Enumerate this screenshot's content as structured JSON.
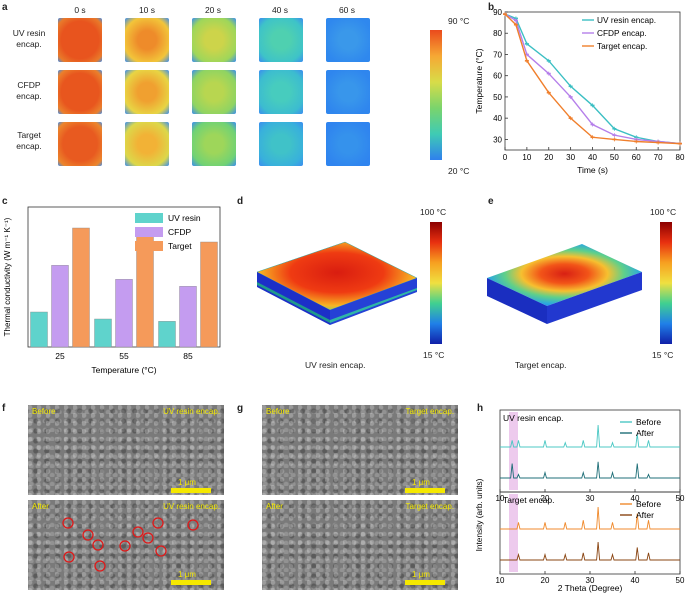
{
  "panels": {
    "a": "a",
    "b": "b",
    "c": "c",
    "d": "d",
    "e": "e",
    "f": "f",
    "g": "g",
    "h": "h"
  },
  "panel_a": {
    "time_labels": [
      "0 s",
      "10 s",
      "20 s",
      "40 s",
      "60 s"
    ],
    "rows": [
      {
        "label1": "UV resin",
        "label2": "encap."
      },
      {
        "label1": "CFDP",
        "label2": "encap."
      },
      {
        "label1": "Target",
        "label2": "encap."
      }
    ],
    "colorbar_max": "90 °C",
    "colorbar_min": "20 °C",
    "colors": [
      "#e94a1c",
      "#f2a42e",
      "#a9d44c",
      "#3fcbb4",
      "#2c85ee"
    ]
  },
  "chart_data": [
    {
      "type": "line",
      "title": "",
      "xlabel": "Time (s)",
      "ylabel": "Temperature (°C)",
      "xlim": [
        0,
        80
      ],
      "ylim": [
        25,
        90
      ],
      "xticks": [
        0,
        10,
        20,
        30,
        40,
        50,
        60,
        70,
        80
      ],
      "yticks": [
        30,
        40,
        50,
        60,
        70,
        80,
        90
      ],
      "series": [
        {
          "name": "UV resin encap.",
          "color": "#3bbfc3",
          "x": [
            0,
            5,
            10,
            20,
            30,
            40,
            50,
            60,
            70,
            80
          ],
          "y": [
            89,
            87,
            75,
            67,
            55,
            46,
            35,
            31,
            29,
            28
          ]
        },
        {
          "name": "CFDP encap.",
          "color": "#b57fea",
          "x": [
            0,
            5,
            10,
            20,
            30,
            40,
            50,
            60,
            70,
            80
          ],
          "y": [
            89,
            86,
            70,
            61,
            50,
            37,
            32,
            30,
            29,
            28
          ]
        },
        {
          "name": "Target encap.",
          "color": "#f07f2c",
          "x": [
            0,
            5,
            10,
            20,
            30,
            40,
            50,
            60,
            70,
            80
          ],
          "y": [
            89,
            84,
            67,
            52,
            40,
            31,
            30,
            29,
            28.5,
            28
          ]
        }
      ]
    },
    {
      "type": "bar",
      "title": "",
      "xlabel": "Temperature (°C)",
      "ylabel": "Thermal conductivity (W m⁻¹ K⁻¹)",
      "ylim": [
        0,
        0.6
      ],
      "categories": [
        "25",
        "55",
        "85"
      ],
      "series": [
        {
          "name": "UV resin",
          "color": "#5fd3cc",
          "values": [
            0.15,
            0.12,
            0.11
          ]
        },
        {
          "name": "CFDP",
          "color": "#c49cf0",
          "values": [
            0.35,
            0.29,
            0.26
          ]
        },
        {
          "name": "Target",
          "color": "#f59a5a",
          "values": [
            0.51,
            0.49,
            0.45
          ]
        }
      ]
    },
    {
      "type": "line",
      "title": "",
      "xlabel": "2 Theta (Degree)",
      "ylabel": "Intensity (arb. units)",
      "xlim": [
        10,
        50
      ],
      "xticks": [
        10,
        20,
        30,
        40,
        50
      ],
      "subplots": [
        {
          "label": "UV resin encap.",
          "series": [
            {
              "name": "Before",
              "color": "#4cc8c4",
              "peaks": [
                [
                  12.7,
                  0.3
                ],
                [
                  14.1,
                  0.3
                ],
                [
                  20.0,
                  0.3
                ],
                [
                  24.5,
                  0.2
                ],
                [
                  28.5,
                  0.3
                ],
                [
                  31.8,
                  1.0
                ],
                [
                  35.0,
                  0.2
                ],
                [
                  40.5,
                  0.6
                ],
                [
                  43.0,
                  0.3
                ]
              ]
            },
            {
              "name": "After",
              "color": "#1f6f78",
              "peaks": [
                [
                  12.7,
                  0.8
                ],
                [
                  14.1,
                  0.2
                ],
                [
                  20.0,
                  0.3
                ],
                [
                  28.5,
                  0.3
                ],
                [
                  31.8,
                  0.9
                ],
                [
                  35.0,
                  0.3
                ],
                [
                  40.5,
                  0.8
                ],
                [
                  43.0,
                  0.2
                ]
              ]
            }
          ]
        },
        {
          "label": "Target encap.",
          "series": [
            {
              "name": "Before",
              "color": "#f08a2c",
              "peaks": [
                [
                  14.1,
                  0.3
                ],
                [
                  20.0,
                  0.3
                ],
                [
                  24.5,
                  0.3
                ],
                [
                  28.5,
                  0.4
                ],
                [
                  31.8,
                  1.0
                ],
                [
                  35.0,
                  0.3
                ],
                [
                  40.5,
                  0.7
                ],
                [
                  43.0,
                  0.4
                ]
              ]
            },
            {
              "name": "After",
              "color": "#8a4512",
              "peaks": [
                [
                  14.1,
                  0.3
                ],
                [
                  20.0,
                  0.3
                ],
                [
                  24.5,
                  0.3
                ],
                [
                  28.5,
                  0.4
                ],
                [
                  31.8,
                  1.0
                ],
                [
                  35.0,
                  0.3
                ],
                [
                  40.5,
                  0.7
                ],
                [
                  43.0,
                  0.4
                ]
              ]
            }
          ]
        }
      ]
    }
  ],
  "panel_d": {
    "max": "100 °C",
    "min": "15 °C",
    "caption": "UV resin encap."
  },
  "panel_e": {
    "max": "100 °C",
    "min": "15 °C",
    "caption": "Target encap."
  },
  "panel_f": {
    "before": "Before",
    "after": "After",
    "tag": "UV resin encap.",
    "scale": "1 μm"
  },
  "panel_g": {
    "before": "Before",
    "after": "After",
    "tag": "Target encap.",
    "scale": "1 μm"
  },
  "panel_h_extra": {
    "before": "Before",
    "after": "After"
  }
}
